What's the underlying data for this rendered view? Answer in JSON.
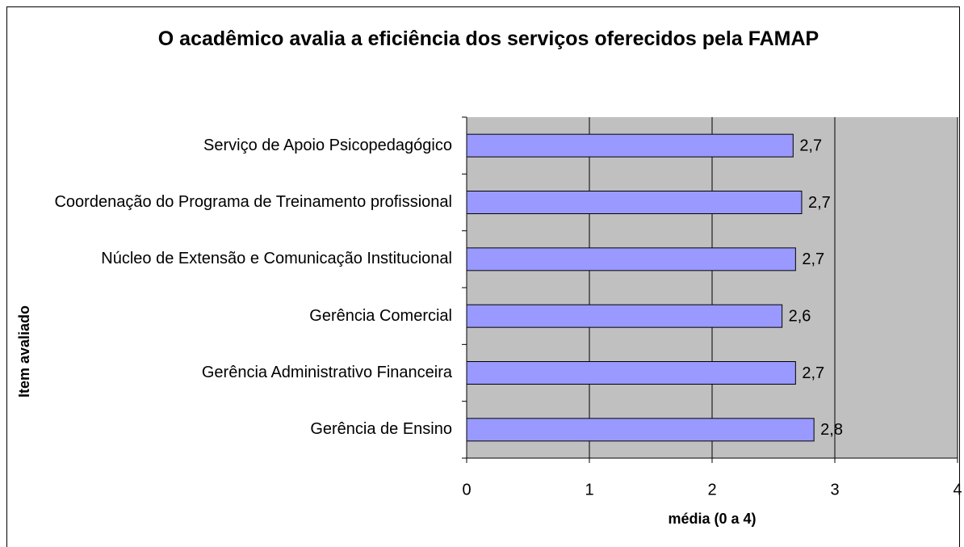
{
  "chart_data": {
    "type": "bar",
    "orientation": "horizontal",
    "title": "O acadêmico avalia a eficiência dos serviços oferecidos pela FAMAP",
    "xlabel": "média (0 a 4)",
    "ylabel": "Item avaliado",
    "categories": [
      "Serviço de Apoio Psicopedagógico",
      "Coordenação do Programa de Treinamento profissional",
      "Núcleo de Extensão e Comunicação Institucional",
      "Gerência Comercial",
      "Gerência Administrativo Financeira",
      "Gerência de Ensino"
    ],
    "values": [
      2.66,
      2.73,
      2.68,
      2.57,
      2.68,
      2.83
    ],
    "value_labels": [
      "2,7",
      "2,7",
      "2,7",
      "2,6",
      "2,7",
      "2,8"
    ],
    "color": "#9999ff",
    "background": "#c0c0c0",
    "xlim": [
      0,
      4
    ],
    "xticks": [
      0,
      1,
      2,
      3,
      4
    ],
    "grid": true
  }
}
